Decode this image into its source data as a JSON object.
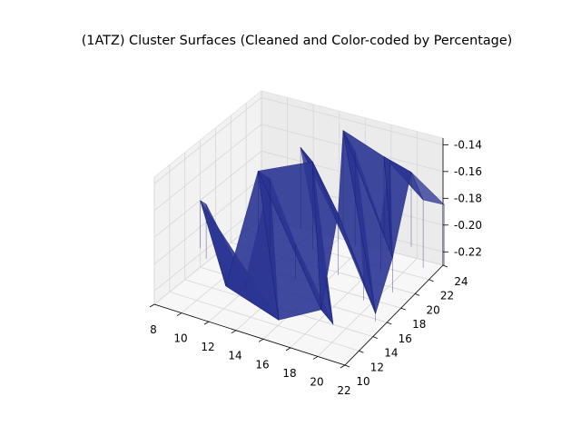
{
  "chart_data": {
    "type": "surface3d",
    "title": "(1ATZ) Cluster Surfaces (Cleaned and Color-coded by Percentage)",
    "xlabel": "",
    "ylabel": "",
    "zlabel": "",
    "x_ticks": [
      "8",
      "10",
      "12",
      "14",
      "16",
      "18",
      "20",
      "22"
    ],
    "y_ticks": [
      "10",
      "12",
      "14",
      "16",
      "18",
      "20",
      "22",
      "24"
    ],
    "z_ticks": [
      "-0.14",
      "-0.16",
      "-0.18",
      "-0.20",
      "-0.22"
    ],
    "xlim": [
      8,
      22
    ],
    "ylim": [
      10,
      24
    ],
    "zlim": [
      -0.23,
      -0.135
    ],
    "grid": true,
    "surface_color": "#2a3593",
    "surface_edge_color": "#1a2270",
    "pane_color": "#f2f2f2",
    "series": [
      {
        "points": [
          [
            8,
            16,
            -0.18
          ],
          [
            9,
            15,
            -0.175
          ],
          [
            11,
            14,
            -0.225
          ],
          [
            12,
            18,
            -0.16
          ],
          [
            13,
            13,
            -0.21
          ],
          [
            14,
            20,
            -0.15
          ],
          [
            15,
            16,
            -0.19
          ],
          [
            16,
            12,
            -0.225
          ],
          [
            16,
            22,
            -0.145
          ],
          [
            17,
            18,
            -0.17
          ],
          [
            18,
            14,
            -0.22
          ],
          [
            18,
            23,
            -0.15
          ],
          [
            19,
            20,
            -0.18
          ],
          [
            20,
            16,
            -0.2
          ],
          [
            20,
            12,
            -0.215
          ],
          [
            21,
            22,
            -0.165
          ],
          [
            21,
            18,
            -0.19
          ],
          [
            22,
            14,
            -0.21
          ],
          [
            22,
            23,
            -0.17
          ],
          [
            12,
            22,
            -0.155
          ],
          [
            10,
            20,
            -0.17
          ],
          [
            14,
            24,
            -0.145
          ],
          [
            17,
            24,
            -0.155
          ],
          [
            19,
            24,
            -0.16
          ]
        ]
      }
    ]
  }
}
